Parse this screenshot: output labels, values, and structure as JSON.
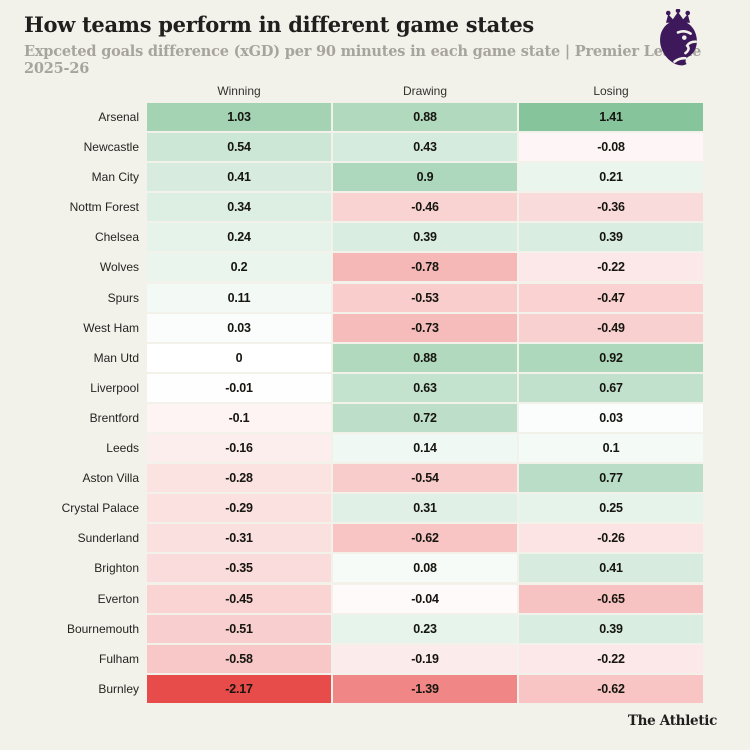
{
  "header": {
    "title": "How teams perform in different game states",
    "subtitle": "Expceted goals difference (xGD) per 90 minutes in each game state | Premier League 2025-26"
  },
  "table": {
    "columns": [
      "Winning",
      "Drawing",
      "Losing"
    ],
    "rows": [
      {
        "team": "Arsenal",
        "values": [
          "1.03",
          "0.88",
          "1.41"
        ]
      },
      {
        "team": "Newcastle",
        "values": [
          "0.54",
          "0.43",
          "-0.08"
        ]
      },
      {
        "team": "Man City",
        "values": [
          "0.41",
          "0.9",
          "0.21"
        ]
      },
      {
        "team": "Nottm Forest",
        "values": [
          "0.34",
          "-0.46",
          "-0.36"
        ]
      },
      {
        "team": "Chelsea",
        "values": [
          "0.24",
          "0.39",
          "0.39"
        ]
      },
      {
        "team": "Wolves",
        "values": [
          "0.2",
          "-0.78",
          "-0.22"
        ]
      },
      {
        "team": "Spurs",
        "values": [
          "0.11",
          "-0.53",
          "-0.47"
        ]
      },
      {
        "team": "West Ham",
        "values": [
          "0.03",
          "-0.73",
          "-0.49"
        ]
      },
      {
        "team": "Man Utd",
        "values": [
          "0",
          "0.88",
          "0.92"
        ]
      },
      {
        "team": "Liverpool",
        "values": [
          "-0.01",
          "0.63",
          "0.67"
        ]
      },
      {
        "team": "Brentford",
        "values": [
          "-0.1",
          "0.72",
          "0.03"
        ]
      },
      {
        "team": "Leeds",
        "values": [
          "-0.16",
          "0.14",
          "0.1"
        ]
      },
      {
        "team": "Aston Villa",
        "values": [
          "-0.28",
          "-0.54",
          "0.77"
        ]
      },
      {
        "team": "Crystal Palace",
        "values": [
          "-0.29",
          "0.31",
          "0.25"
        ]
      },
      {
        "team": "Sunderland",
        "values": [
          "-0.31",
          "-0.62",
          "-0.26"
        ]
      },
      {
        "team": "Brighton",
        "values": [
          "-0.35",
          "0.08",
          "0.41"
        ]
      },
      {
        "team": "Everton",
        "values": [
          "-0.45",
          "-0.04",
          "-0.65"
        ]
      },
      {
        "team": "Bournemouth",
        "values": [
          "-0.51",
          "0.23",
          "0.39"
        ]
      },
      {
        "team": "Fulham",
        "values": [
          "-0.58",
          "-0.19",
          "-0.22"
        ]
      },
      {
        "team": "Burnley",
        "values": [
          "-2.17",
          "-1.39",
          "-0.62"
        ]
      }
    ]
  },
  "footer": {
    "brand": "The Athletic"
  },
  "colors": {
    "background": "#f2f1ea",
    "title": "#201f1d",
    "subtitle": "#a6a49c",
    "positive_max": "#86c59c",
    "negative_max": "#e84c4a",
    "neutral": "#ffffff",
    "logo_purple": "#3d195b"
  },
  "chart_data": {
    "type": "heatmap",
    "title": "How teams perform in different game states",
    "subtitle": "Expceted goals difference (xGD) per 90 minutes in each game state | Premier League 2025-26",
    "columns": [
      "Winning",
      "Drawing",
      "Losing"
    ],
    "teams": [
      "Arsenal",
      "Newcastle",
      "Man City",
      "Nottm Forest",
      "Chelsea",
      "Wolves",
      "Spurs",
      "West Ham",
      "Man Utd",
      "Liverpool",
      "Brentford",
      "Leeds",
      "Aston Villa",
      "Crystal Palace",
      "Sunderland",
      "Brighton",
      "Everton",
      "Bournemouth",
      "Fulham",
      "Burnley"
    ],
    "values": [
      [
        1.03,
        0.88,
        1.41
      ],
      [
        0.54,
        0.43,
        -0.08
      ],
      [
        0.41,
        0.9,
        0.21
      ],
      [
        0.34,
        -0.46,
        -0.36
      ],
      [
        0.24,
        0.39,
        0.39
      ],
      [
        0.2,
        -0.78,
        -0.22
      ],
      [
        0.11,
        -0.53,
        -0.47
      ],
      [
        0.03,
        -0.73,
        -0.49
      ],
      [
        0,
        0.88,
        0.92
      ],
      [
        -0.01,
        0.63,
        0.67
      ],
      [
        -0.1,
        0.72,
        0.03
      ],
      [
        -0.16,
        0.14,
        0.1
      ],
      [
        -0.28,
        -0.54,
        0.77
      ],
      [
        -0.29,
        0.31,
        0.25
      ],
      [
        -0.31,
        -0.62,
        -0.26
      ],
      [
        -0.35,
        0.08,
        0.41
      ],
      [
        -0.45,
        -0.04,
        -0.65
      ],
      [
        -0.51,
        0.23,
        0.39
      ],
      [
        -0.58,
        -0.19,
        -0.22
      ],
      [
        -2.17,
        -1.39,
        -0.62
      ]
    ],
    "color_scale": {
      "domain": [
        -2.17,
        0,
        1.41
      ],
      "negative": "#e84c4a",
      "zero": "#ffffff",
      "positive": "#86c59c",
      "gamma": 0.9
    },
    "legend_position": "none",
    "source": "The Athletic"
  }
}
